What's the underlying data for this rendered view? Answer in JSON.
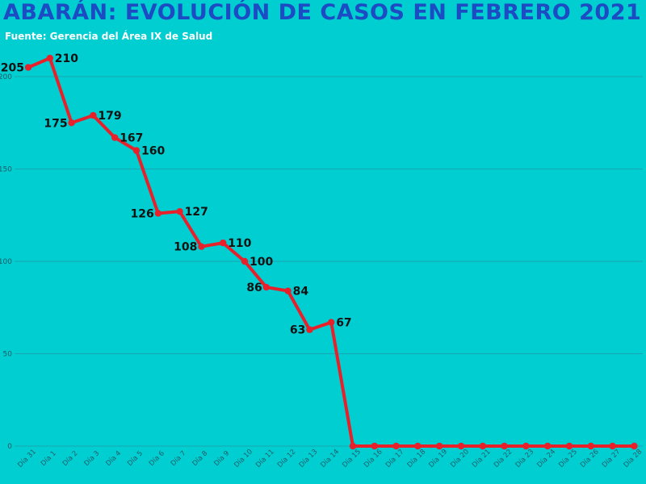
{
  "header": {
    "title": "ABARÁN: EVOLUCIÓN DE CASOS EN FEBRERO 2021",
    "subtitle": "Fuente: Gerencia del Área IX de Salud"
  },
  "colors": {
    "background": "#00CED1",
    "title": "#1D4BC4",
    "line": "#E8202A",
    "grid": "#1AA5B0",
    "label": "#111111"
  },
  "chart_data": {
    "type": "line",
    "title": "ABARÁN: EVOLUCIÓN DE CASOS EN FEBRERO 2021",
    "subtitle": "Fuente: Gerencia del Área IX de Salud",
    "xlabel": "",
    "ylabel": "",
    "ylim": [
      0,
      210
    ],
    "yticks": [
      0,
      50,
      100,
      150,
      200
    ],
    "ytick_labels": [
      "0",
      "50",
      "100",
      "150",
      "200"
    ],
    "grid": true,
    "legend": "none",
    "categories": [
      "Día 31",
      "Día 1",
      "Día 2",
      "Día 3",
      "Día 4",
      "Día 5",
      "Día 6",
      "Día 7",
      "Día 8",
      "Día 9",
      "Día 10",
      "Día 11",
      "Día 12",
      "Día 13",
      "Día 14",
      "Día 15",
      "Día 16",
      "Día 17",
      "Día 18",
      "Día 19",
      "Día 20",
      "Día 21",
      "Día 22",
      "Día 23",
      "Día 24",
      "Día 25",
      "Día 26",
      "Día 27",
      "Día 28"
    ],
    "series": [
      {
        "values": [
          205,
          210,
          175,
          179,
          167,
          160,
          126,
          127,
          108,
          110,
          100,
          86,
          84,
          63,
          67,
          0,
          0,
          0,
          0,
          0,
          0,
          0,
          0,
          0,
          0,
          0,
          0,
          0,
          0
        ],
        "data_labels": [
          "205",
          "210",
          "175",
          "179",
          "167",
          "160",
          "126",
          "127",
          "108",
          "110",
          "100",
          "86",
          "84",
          "63",
          "67",
          "",
          "",
          "",
          "",
          "",
          "",
          "",
          "",
          "",
          "",
          "",
          "",
          "",
          ""
        ]
      }
    ]
  }
}
